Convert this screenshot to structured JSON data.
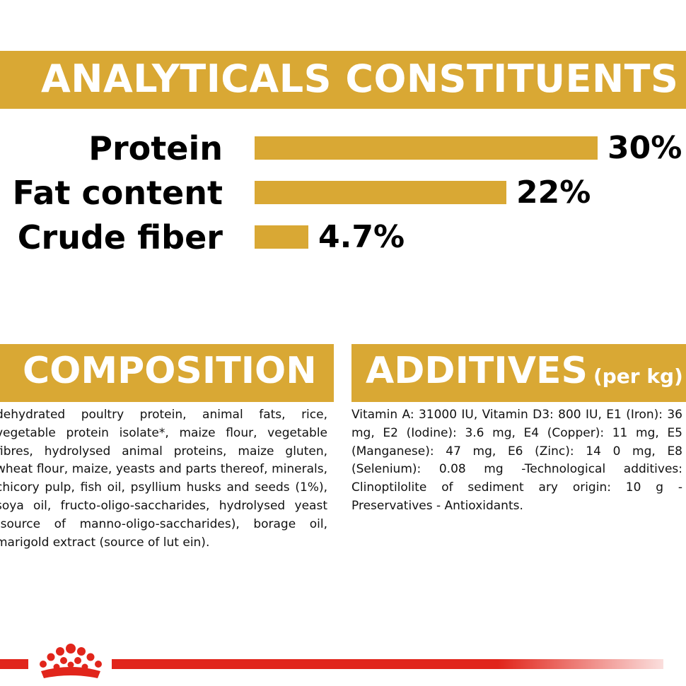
{
  "analytics": {
    "title": "ANALYTICALS CONSTITUENTS",
    "items": [
      {
        "label": "Protein",
        "value": "30%",
        "percent": 30
      },
      {
        "label": "Fat content",
        "value": "22%",
        "percent": 22
      },
      {
        "label": "Crude fiber",
        "value": "4.7%",
        "percent": 4.7
      }
    ]
  },
  "composition": {
    "title": "COMPOSITION",
    "text": "dehydrated poultry protein, animal fats, rice, vegetable protein isolate*, maize flour, vegetable fibres, hydrolysed animal proteins, maize gluten, wheat flour, maize, yeasts and parts thereof, minerals, chicory pulp, fish oil, psyllium husks and seeds (1%), soya oil, fructo-oligo-saccharides, hydrolysed yeast (source of manno-oligo-saccharides), borage oil, marigold extract (source of lut ein)."
  },
  "additives": {
    "title": "ADDITIVES",
    "subtitle": "(per kg)",
    "text": "Vitamin A: 31000 IU, Vitamin D3: 800 IU, E1 (Iron): 36 mg, E2 (Iodine): 3.6 mg, E4 (Copper): 11 mg, E5 (Manganese): 47 mg, E6 (Zinc): 14 0 mg, E8 (Selenium): 0.08 mg -Technological additives: Clinoptilolite of sediment ary origin: 10 g - Preservatives - Antioxidants."
  },
  "colors": {
    "brand_gold": "#d9a834",
    "brand_red": "#e1251b",
    "text": "#000000"
  },
  "icons": [
    "crown-logo-icon"
  ]
}
